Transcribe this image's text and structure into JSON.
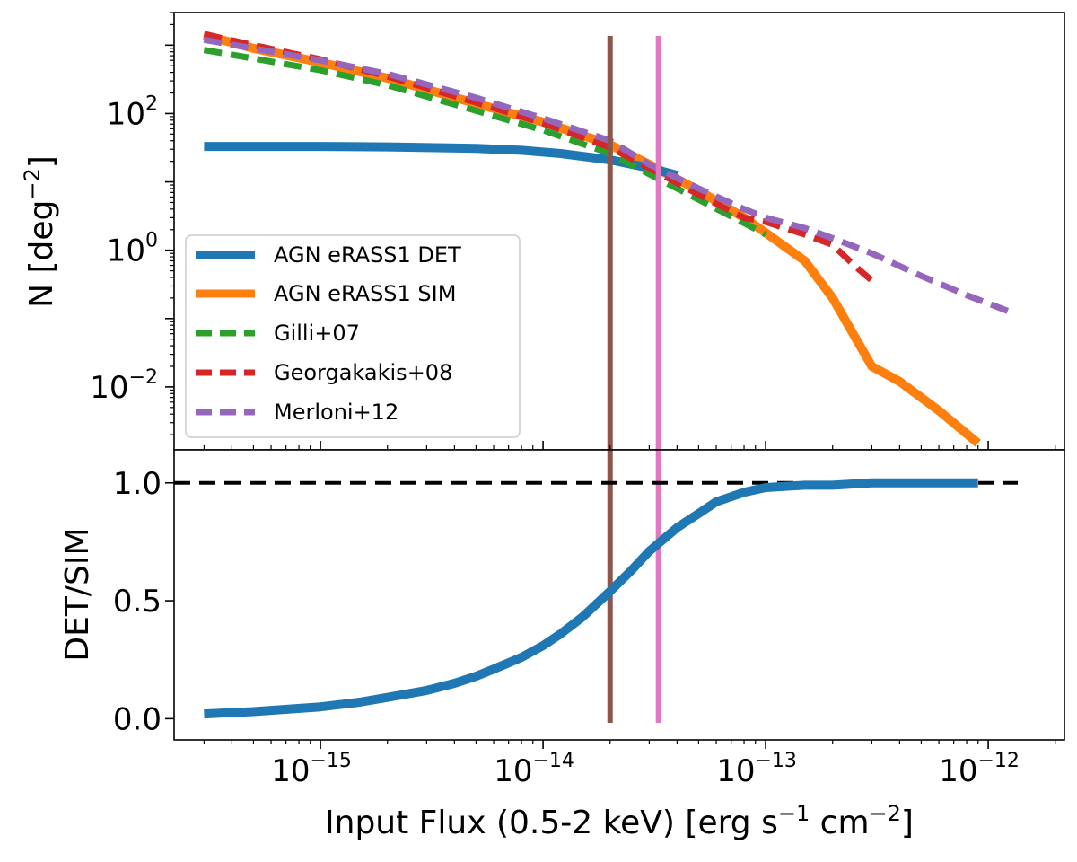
{
  "chart_data": [
    {
      "type": "line",
      "panel": "top",
      "scale": {
        "x": "log",
        "y": "log"
      },
      "xlim": [
        2.2e-16,
        2.2e-12
      ],
      "ylim": [
        0.0012,
        3000
      ],
      "ylabel": "N [deg",
      "ylabel_exp": "−2",
      "ylabel_end": "]",
      "yticks": [
        {
          "value": 0.01,
          "base": "10",
          "exp": "−2"
        },
        {
          "value": 1,
          "base": "10",
          "exp": "0"
        },
        {
          "value": 100,
          "base": "10",
          "exp": "2"
        }
      ],
      "series": [
        {
          "name": "AGN eRASS1 DET",
          "color": "#1f77b4",
          "style": "solid",
          "x": [
            3e-16,
            5e-16,
            1e-15,
            2e-15,
            5e-15,
            8e-15,
            1.2e-14,
            2e-14,
            3e-14,
            4e-14
          ],
          "y": [
            33,
            33,
            33,
            32.5,
            31,
            29,
            26,
            21,
            16,
            12.5
          ]
        },
        {
          "name": "AGN eRASS1 SIM",
          "color": "#ff7f0e",
          "style": "solid",
          "x": [
            3e-16,
            5e-16,
            1e-15,
            2e-15,
            5e-15,
            1e-14,
            2e-14,
            3e-14,
            5e-14,
            8e-14,
            1e-13,
            1.5e-13,
            2e-13,
            3e-13,
            4e-13,
            6e-13,
            9e-13
          ],
          "y": [
            1400,
            900,
            560,
            330,
            140,
            75,
            35,
            18,
            7.5,
            3,
            1.8,
            0.7,
            0.2,
            0.02,
            0.012,
            0.0045,
            0.0015
          ]
        },
        {
          "name": "Gilli+07",
          "color": "#2ca02c",
          "style": "dashed",
          "x": [
            3e-16,
            5e-16,
            1e-15,
            2e-15,
            5e-15,
            1e-14,
            2e-14,
            3e-14,
            5e-14,
            8e-14,
            1e-13
          ],
          "y": [
            850,
            640,
            430,
            260,
            110,
            57,
            26,
            13,
            5.5,
            2.5,
            1.7
          ]
        },
        {
          "name": "Georgakakis+08",
          "color": "#d62728",
          "style": "dashed",
          "x": [
            3e-16,
            5e-16,
            1e-15,
            2e-15,
            5e-15,
            1e-14,
            2e-14,
            3e-14,
            5e-14,
            8e-14,
            1e-13,
            1.5e-13,
            2e-13,
            2.5e-13,
            3e-13
          ],
          "y": [
            1450,
            1000,
            620,
            350,
            145,
            72,
            32,
            16,
            6.5,
            3,
            2.6,
            1.7,
            1.2,
            0.6,
            0.36
          ]
        },
        {
          "name": "Merloni+12",
          "color": "#9467bd",
          "style": "dashed",
          "x": [
            3e-16,
            1e-15,
            2e-15,
            5e-15,
            1e-14,
            2e-14,
            3e-14,
            5e-14,
            8e-14,
            1e-13,
            1.5e-13,
            2e-13,
            3e-13,
            5e-13,
            8e-13,
            1.3e-12
          ],
          "y": [
            1200,
            600,
            380,
            170,
            85,
            40,
            18,
            8,
            4,
            3,
            2.1,
            1.5,
            0.9,
            0.42,
            0.22,
            0.12
          ]
        }
      ],
      "vlines": [
        {
          "x": 2e-14,
          "color": "#8c564b"
        },
        {
          "x": 3.3e-14,
          "color": "#e377c2"
        }
      ],
      "legend": {
        "position": "lower-left"
      }
    },
    {
      "type": "line",
      "panel": "bottom",
      "scale": {
        "x": "log",
        "y": "linear"
      },
      "xlim": [
        2.2e-16,
        2.2e-12
      ],
      "ylim": [
        -0.09,
        1.14
      ],
      "xlabel": "Input Flux (0.5-2 keV) [erg s",
      "xlabel_exp1": "−1",
      "xlabel_mid": " cm",
      "xlabel_exp2": "−2",
      "xlabel_end": "]",
      "ylabel": "DET/SIM",
      "yticks": [
        {
          "value": 0.0,
          "label": "0.0"
        },
        {
          "value": 0.5,
          "label": "0.5"
        },
        {
          "value": 1.0,
          "label": "1.0"
        }
      ],
      "xticks": [
        {
          "value": 1e-15,
          "base": "10",
          "exp": "−15"
        },
        {
          "value": 1e-14,
          "base": "10",
          "exp": "−14"
        },
        {
          "value": 1e-13,
          "base": "10",
          "exp": "−13"
        },
        {
          "value": 1e-12,
          "base": "10",
          "exp": "−12"
        }
      ],
      "series": [
        {
          "name": "DET/SIM",
          "color": "#1f77b4",
          "style": "solid",
          "x": [
            3e-16,
            5e-16,
            1e-15,
            1.5e-15,
            2e-15,
            3e-15,
            4e-15,
            5e-15,
            6e-15,
            8e-15,
            1e-14,
            1.2e-14,
            1.5e-14,
            2e-14,
            2.5e-14,
            3e-14,
            4e-14,
            5e-14,
            6e-14,
            8e-14,
            1e-13,
            1.5e-13,
            2e-13,
            3e-13,
            5e-13,
            9e-13
          ],
          "y": [
            0.02,
            0.03,
            0.05,
            0.07,
            0.09,
            0.12,
            0.15,
            0.18,
            0.21,
            0.26,
            0.31,
            0.36,
            0.43,
            0.54,
            0.63,
            0.71,
            0.81,
            0.87,
            0.92,
            0.96,
            0.98,
            0.99,
            0.99,
            1.0,
            1.0,
            1.0
          ]
        }
      ],
      "hlines": [
        {
          "y": 1.0,
          "color": "#000000",
          "style": "dashed"
        }
      ],
      "vlines": [
        {
          "x": 2e-14,
          "color": "#8c564b"
        },
        {
          "x": 3.3e-14,
          "color": "#e377c2"
        }
      ]
    }
  ]
}
